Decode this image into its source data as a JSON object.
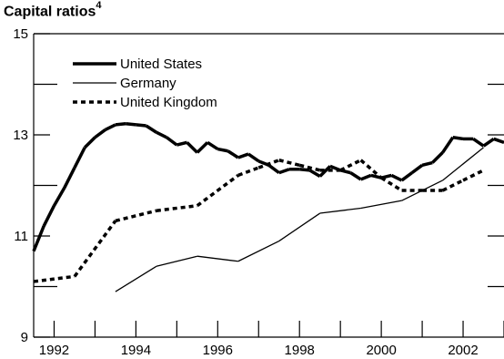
{
  "chart_data": {
    "type": "line",
    "title": "Capital ratios",
    "title_superscript": "4",
    "xlabel": "",
    "ylabel": "",
    "xlim": [
      1991.5,
      2003.0
    ],
    "ylim": [
      9,
      15
    ],
    "x_ticks": [
      1992,
      1994,
      1996,
      1998,
      2000,
      2002
    ],
    "x_tick_labels": [
      "1992",
      "1994",
      "1996",
      "1998",
      "2000",
      "2002"
    ],
    "y_ticks": [
      9,
      11,
      13,
      15
    ],
    "y_tick_labels": [
      "9",
      "11",
      "13",
      "15"
    ],
    "grid": false,
    "legend_position": "top-left",
    "series": [
      {
        "name": "United States",
        "style": "thick-solid",
        "color": "#000000",
        "x": [
          1991.5,
          1991.75,
          1992.0,
          1992.25,
          1992.5,
          1992.75,
          1993.0,
          1993.25,
          1993.5,
          1993.75,
          1994.0,
          1994.25,
          1994.5,
          1994.75,
          1995.0,
          1995.25,
          1995.5,
          1995.75,
          1996.0,
          1996.25,
          1996.5,
          1996.75,
          1997.0,
          1997.25,
          1997.5,
          1997.75,
          1998.0,
          1998.25,
          1998.5,
          1998.75,
          1999.0,
          1999.25,
          1999.5,
          1999.75,
          2000.0,
          2000.25,
          2000.5,
          2000.75,
          2001.0,
          2001.25,
          2001.5,
          2001.75,
          2002.0,
          2002.25,
          2002.5,
          2002.75,
          2003.0
        ],
        "values": [
          10.7,
          11.2,
          11.6,
          11.95,
          12.35,
          12.75,
          12.95,
          13.1,
          13.2,
          13.22,
          13.2,
          13.18,
          13.05,
          12.95,
          12.8,
          12.85,
          12.65,
          12.85,
          12.72,
          12.68,
          12.55,
          12.62,
          12.48,
          12.4,
          12.25,
          12.32,
          12.32,
          12.3,
          12.18,
          12.38,
          12.3,
          12.25,
          12.12,
          12.2,
          12.15,
          12.2,
          12.1,
          12.25,
          12.4,
          12.45,
          12.65,
          12.95,
          12.92,
          12.92,
          12.78,
          12.92,
          12.85
        ]
      },
      {
        "name": "Germany",
        "style": "thin-solid",
        "color": "#000000",
        "x": [
          1993.5,
          1994.5,
          1995.5,
          1996.5,
          1997.5,
          1998.5,
          1999.5,
          2000.5,
          2001.5,
          2002.5
        ],
        "values": [
          9.9,
          10.4,
          10.6,
          10.5,
          10.9,
          11.45,
          11.55,
          11.7,
          12.1,
          12.75
        ]
      },
      {
        "name": "United Kingdom",
        "style": "thick-dotted",
        "color": "#000000",
        "x": [
          1991.5,
          1992.5,
          1993.5,
          1994.5,
          1995.5,
          1996.5,
          1997.0,
          1997.5,
          1998.0,
          1998.5,
          1999.0,
          1999.5,
          2000.0,
          2000.5,
          2001.0,
          2001.5,
          2002.0,
          2002.5
        ],
        "values": [
          10.1,
          10.2,
          11.3,
          11.5,
          11.6,
          12.2,
          12.35,
          12.5,
          12.4,
          12.3,
          12.3,
          12.5,
          12.15,
          11.9,
          11.9,
          11.9,
          12.1,
          12.3
        ]
      }
    ]
  }
}
